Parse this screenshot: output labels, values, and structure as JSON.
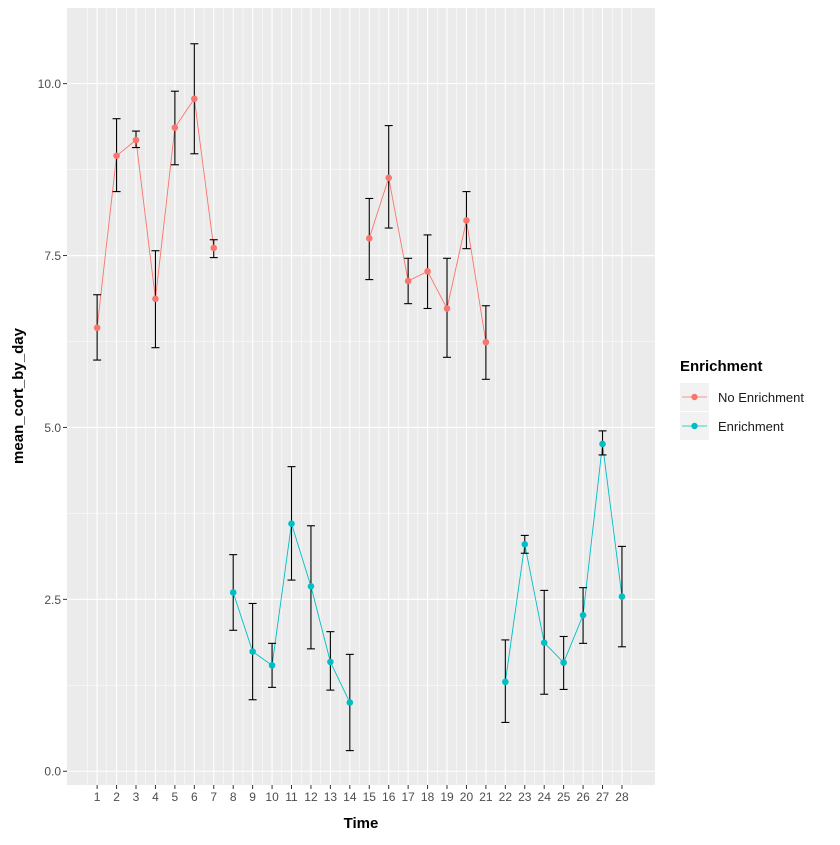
{
  "chart_data": {
    "type": "line",
    "title": "",
    "xlabel": "Time",
    "ylabel": "mean_cort_by_day",
    "xlim": [
      -0.55,
      29.7
    ],
    "ylim": [
      -0.2,
      11.1
    ],
    "grid": true,
    "x_ticks": [
      1,
      2,
      3,
      4,
      5,
      6,
      7,
      8,
      9,
      10,
      11,
      12,
      13,
      14,
      15,
      16,
      17,
      18,
      19,
      20,
      21,
      22,
      23,
      24,
      25,
      26,
      27,
      28
    ],
    "y_ticks": [
      0,
      2.5,
      5,
      7.5,
      10
    ],
    "y_tick_labels": [
      "0.0",
      "2.5",
      "5.0",
      "7.5",
      "10.0"
    ],
    "legend": {
      "title": "Enrichment",
      "position": "right"
    },
    "series": [
      {
        "name": "No Enrichment",
        "color": "#F8766D",
        "x": [
          1,
          2,
          3,
          4,
          5,
          6,
          7,
          15,
          16,
          17,
          18,
          19,
          20,
          21
        ],
        "y": [
          6.45,
          8.95,
          9.18,
          6.87,
          9.36,
          9.78,
          7.61,
          7.75,
          8.63,
          7.13,
          7.27,
          6.73,
          8.01,
          6.24
        ],
        "ymin": [
          5.98,
          8.43,
          9.07,
          6.16,
          8.82,
          8.98,
          7.47,
          7.15,
          7.9,
          6.8,
          6.73,
          6.02,
          7.6,
          5.7
        ],
        "ymax": [
          6.93,
          9.49,
          9.31,
          7.57,
          9.89,
          10.58,
          7.73,
          8.33,
          9.39,
          7.46,
          7.8,
          7.46,
          8.43,
          6.77
        ]
      },
      {
        "name": "Enrichment",
        "color": "#00BFC4",
        "x": [
          8,
          9,
          10,
          11,
          12,
          13,
          14,
          22,
          23,
          24,
          25,
          26,
          27,
          28
        ],
        "y": [
          2.6,
          1.74,
          1.54,
          3.6,
          2.69,
          1.59,
          1.0,
          1.3,
          3.3,
          1.87,
          1.58,
          2.27,
          4.76,
          2.54
        ],
        "ymin": [
          2.05,
          1.04,
          1.22,
          2.78,
          1.78,
          1.18,
          0.3,
          0.71,
          3.17,
          1.12,
          1.19,
          1.86,
          4.6,
          1.81
        ],
        "ymax": [
          3.15,
          2.44,
          1.86,
          4.43,
          3.57,
          2.03,
          1.7,
          1.91,
          3.43,
          2.63,
          1.96,
          2.67,
          4.95,
          3.27
        ]
      }
    ]
  }
}
